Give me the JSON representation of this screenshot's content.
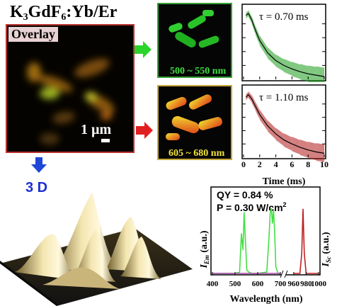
{
  "title": {
    "main": "K",
    "sub1": "3",
    "mid": "GdF",
    "sub2": "6",
    "tail": ":Yb/Er"
  },
  "overlay": {
    "label": "Overlay",
    "scale_label": "1 µm"
  },
  "three_d": {
    "label": "3 D"
  },
  "micrographs": {
    "green": {
      "range_label": "500 ~ 550 nm",
      "border_color": "#35a035"
    },
    "red": {
      "range_label": "605 ~ 680 nm",
      "border_color": "#c8a83a"
    }
  },
  "arrows": {
    "green": "#2bd42b",
    "red": "#e02020",
    "blue": "#1e46d8"
  },
  "chart_data": [
    {
      "type": "line",
      "panel": "decay-green",
      "annotation": "τ = 0.70 ms",
      "xlabel": "",
      "ylabel": "",
      "xlim": [
        0,
        10
      ],
      "color": "#1a9a1a",
      "series": [
        {
          "x": [
            0.3,
            0.6,
            1,
            1.5,
            2,
            3,
            4,
            5,
            6,
            7,
            8,
            9,
            10
          ],
          "y": [
            0.92,
            0.95,
            0.86,
            0.7,
            0.56,
            0.38,
            0.27,
            0.2,
            0.15,
            0.11,
            0.08,
            0.06,
            0.04
          ]
        }
      ]
    },
    {
      "type": "line",
      "panel": "decay-red",
      "annotation": "τ = 1.10 ms",
      "xlabel": "Time (ms)",
      "ylabel": "",
      "xlim": [
        0,
        10
      ],
      "xticks": [
        "0",
        "2",
        "4",
        "6",
        "8",
        "10"
      ],
      "color": "#b01818",
      "series": [
        {
          "x": [
            0.3,
            0.6,
            1,
            1.5,
            2,
            3,
            4,
            5,
            6,
            7,
            8,
            9,
            10
          ],
          "y": [
            0.9,
            0.94,
            0.88,
            0.76,
            0.64,
            0.47,
            0.35,
            0.26,
            0.2,
            0.15,
            0.11,
            0.08,
            0.06
          ]
        }
      ]
    },
    {
      "type": "line",
      "panel": "spectrum",
      "annotations": [
        "QY = 0.84 %",
        "P = 0.30 W/cm²"
      ],
      "xlabel": "Wavelength (nm)",
      "ylabel_left": "I_Em (a.u.)",
      "ylabel_right": "I_Sc (a.u.)",
      "xticks": [
        "400",
        "500",
        "600",
        "700",
        "960",
        "980",
        "1000"
      ],
      "xlim_left": [
        400,
        700
      ],
      "xlim_right": [
        950,
        1000
      ],
      "series": [
        {
          "name": "emission",
          "color": "#44e044",
          "x": [
            400,
            500,
            520,
            528,
            535,
            540,
            545,
            552,
            560,
            575,
            600,
            640,
            650,
            655,
            660,
            665,
            670,
            675,
            680,
            690,
            700
          ],
          "y": [
            0,
            0,
            0.02,
            0.6,
            0.35,
            0.92,
            0.55,
            0.05,
            0.02,
            0,
            0,
            0.02,
            0.55,
            0.9,
            0.98,
            0.75,
            0.95,
            0.6,
            0.1,
            0,
            0
          ]
        },
        {
          "name": "baseline",
          "color": "#b040b0",
          "x": [
            400,
            700
          ],
          "y": [
            0,
            0
          ]
        },
        {
          "name": "scatter",
          "color": "#c02020",
          "x": [
            960,
            970,
            973,
            975,
            977,
            980,
            1000
          ],
          "y": [
            0,
            0,
            0.3,
            0.97,
            0.3,
            0,
            0
          ]
        }
      ]
    }
  ]
}
